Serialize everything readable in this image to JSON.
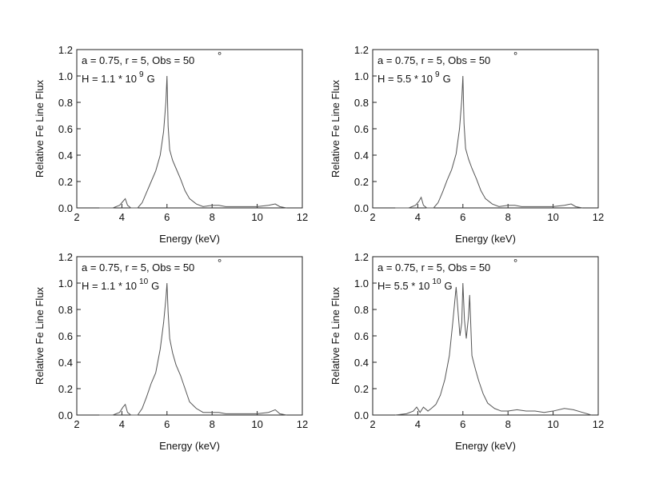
{
  "chart_data": [
    {
      "type": "line",
      "xlabel": "Energy (keV)",
      "ylabel": "Relative Fe Line Flux",
      "annotation": {
        "line1": "a = 0.75, r = 5, Obs = 50",
        "degree": "°",
        "line2": "H = 1.1 * 10",
        "exponent": "9",
        "unit": "G"
      },
      "xlim": [
        2,
        12
      ],
      "ylim": [
        0,
        1.2
      ],
      "xticks": [
        2,
        4,
        6,
        8,
        10,
        12
      ],
      "yticks": [
        {
          "value": 0,
          "label": "0.0"
        },
        {
          "value": 0.2,
          "label": "0.2"
        },
        {
          "value": 0.4,
          "label": "0.4"
        },
        {
          "value": 0.6,
          "label": "0.6"
        },
        {
          "value": 0.8,
          "label": "0.8"
        },
        {
          "value": 1,
          "label": "1.0"
        },
        {
          "value": 1.2,
          "label": "1.2"
        }
      ],
      "color": "#555555",
      "x": [
        3.0,
        3.6,
        3.9,
        4.05,
        4.15,
        4.25,
        4.4,
        4.7,
        4.9,
        5.1,
        5.3,
        5.5,
        5.7,
        5.85,
        5.95,
        6.0,
        6.05,
        6.12,
        6.25,
        6.4,
        6.6,
        6.8,
        7.0,
        7.3,
        7.6,
        8.0,
        8.3,
        8.6,
        9.0,
        9.5,
        10.0,
        10.5,
        10.8,
        11.0,
        11.3
      ],
      "y": [
        0,
        0,
        0.02,
        0.05,
        0.07,
        0.02,
        0,
        0,
        0.04,
        0.12,
        0.2,
        0.28,
        0.4,
        0.58,
        0.8,
        1.0,
        0.62,
        0.44,
        0.36,
        0.3,
        0.22,
        0.13,
        0.07,
        0.03,
        0.01,
        0.02,
        0.02,
        0.01,
        0.01,
        0.01,
        0.01,
        0.02,
        0.03,
        0.01,
        0
      ]
    },
    {
      "type": "line",
      "xlabel": "Energy (keV)",
      "ylabel": "Relative Fe Line Flux",
      "annotation": {
        "line1": "a = 0.75, r = 5, Obs = 50",
        "degree": "°",
        "line2": "H = 5.5 * 10",
        "exponent": "9",
        "unit": "G"
      },
      "xlim": [
        2,
        12
      ],
      "ylim": [
        0,
        1.2
      ],
      "xticks": [
        2,
        4,
        6,
        8,
        10,
        12
      ],
      "yticks": [
        {
          "value": 0,
          "label": "0.0"
        },
        {
          "value": 0.2,
          "label": "0.2"
        },
        {
          "value": 0.4,
          "label": "0.4"
        },
        {
          "value": 0.6,
          "label": "0.6"
        },
        {
          "value": 0.8,
          "label": "0.8"
        },
        {
          "value": 1,
          "label": "1.0"
        },
        {
          "value": 1.2,
          "label": "1.2"
        }
      ],
      "color": "#555555",
      "x": [
        3.0,
        3.6,
        3.9,
        4.05,
        4.15,
        4.25,
        4.4,
        4.7,
        4.9,
        5.1,
        5.3,
        5.5,
        5.7,
        5.85,
        5.95,
        6.0,
        6.05,
        6.12,
        6.25,
        6.4,
        6.6,
        6.8,
        7.0,
        7.3,
        7.6,
        8.0,
        8.3,
        8.6,
        9.0,
        9.5,
        10.0,
        10.5,
        10.8,
        11.0,
        11.3
      ],
      "y": [
        0,
        0,
        0.02,
        0.05,
        0.08,
        0.02,
        0,
        0,
        0.04,
        0.12,
        0.21,
        0.29,
        0.41,
        0.6,
        0.82,
        1.0,
        0.64,
        0.45,
        0.37,
        0.3,
        0.22,
        0.13,
        0.07,
        0.03,
        0.01,
        0.02,
        0.02,
        0.01,
        0.01,
        0.01,
        0.01,
        0.02,
        0.03,
        0.01,
        0
      ]
    },
    {
      "type": "line",
      "xlabel": "Energy (keV)",
      "ylabel": "Relative Fe Line Flux",
      "annotation": {
        "line1": "a = 0.75, r = 5, Obs = 50",
        "degree": "°",
        "line2": "H = 1.1 * 10",
        "exponent": "10",
        "unit": "G"
      },
      "xlim": [
        2,
        12
      ],
      "ylim": [
        0,
        1.2
      ],
      "xticks": [
        2,
        4,
        6,
        8,
        10,
        12
      ],
      "yticks": [
        {
          "value": 0,
          "label": "0.0"
        },
        {
          "value": 0.2,
          "label": "0.2"
        },
        {
          "value": 0.4,
          "label": "0.4"
        },
        {
          "value": 0.6,
          "label": "0.6"
        },
        {
          "value": 0.8,
          "label": "0.8"
        },
        {
          "value": 1,
          "label": "1.0"
        },
        {
          "value": 1.2,
          "label": "1.2"
        }
      ],
      "color": "#555555",
      "x": [
        3.0,
        3.6,
        3.9,
        4.05,
        4.15,
        4.25,
        4.4,
        4.7,
        4.9,
        5.1,
        5.3,
        5.5,
        5.7,
        5.85,
        5.95,
        6.0,
        6.05,
        6.12,
        6.25,
        6.4,
        6.6,
        6.8,
        7.0,
        7.3,
        7.6,
        8.0,
        8.3,
        8.6,
        9.0,
        9.5,
        10.0,
        10.5,
        10.8,
        11.0,
        11.3
      ],
      "y": [
        0,
        0,
        0.02,
        0.06,
        0.08,
        0.02,
        0,
        0,
        0.05,
        0.14,
        0.24,
        0.32,
        0.5,
        0.7,
        0.88,
        1.0,
        0.78,
        0.58,
        0.47,
        0.38,
        0.3,
        0.2,
        0.1,
        0.05,
        0.02,
        0.02,
        0.02,
        0.01,
        0.01,
        0.01,
        0.01,
        0.02,
        0.04,
        0.01,
        0
      ]
    },
    {
      "type": "line",
      "xlabel": "Energy (keV)",
      "ylabel": "Relative Fe Line Flux",
      "annotation": {
        "line1": "a = 0.75, r = 5, Obs = 50",
        "degree": "°",
        "line2": "H= 5.5 * 10",
        "exponent": "10",
        "unit": "G"
      },
      "xlim": [
        2,
        12
      ],
      "ylim": [
        0,
        1.2
      ],
      "xticks": [
        2,
        4,
        6,
        8,
        10,
        12
      ],
      "yticks": [
        {
          "value": 0,
          "label": "0.0"
        },
        {
          "value": 0.2,
          "label": "0.2"
        },
        {
          "value": 0.4,
          "label": "0.4"
        },
        {
          "value": 0.6,
          "label": "0.6"
        },
        {
          "value": 0.8,
          "label": "0.8"
        },
        {
          "value": 1,
          "label": "1.0"
        },
        {
          "value": 1.2,
          "label": "1.2"
        }
      ],
      "color": "#555555",
      "x": [
        3.0,
        3.5,
        3.8,
        3.95,
        4.1,
        4.25,
        4.45,
        4.6,
        4.8,
        5.0,
        5.2,
        5.4,
        5.55,
        5.7,
        5.8,
        5.87,
        5.95,
        6.0,
        6.07,
        6.15,
        6.25,
        6.3,
        6.4,
        6.55,
        6.7,
        6.9,
        7.1,
        7.4,
        7.7,
        8.0,
        8.4,
        8.8,
        9.2,
        9.6,
        10.0,
        10.5,
        10.9,
        11.3,
        11.7
      ],
      "y": [
        0,
        0.01,
        0.03,
        0.06,
        0.02,
        0.06,
        0.03,
        0.05,
        0.08,
        0.15,
        0.27,
        0.45,
        0.7,
        0.97,
        0.75,
        0.6,
        0.7,
        1.0,
        0.72,
        0.58,
        0.75,
        0.91,
        0.45,
        0.35,
        0.26,
        0.16,
        0.09,
        0.05,
        0.03,
        0.03,
        0.04,
        0.03,
        0.03,
        0.02,
        0.03,
        0.05,
        0.04,
        0.02,
        0
      ]
    }
  ]
}
